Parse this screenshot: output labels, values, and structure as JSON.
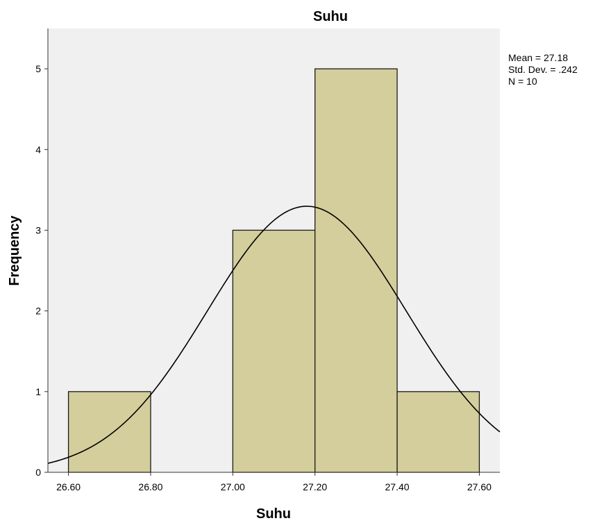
{
  "chart_data": {
    "type": "bar",
    "title": "Suhu",
    "xlabel": "Suhu",
    "ylabel": "Frequency",
    "xlim": [
      26.55,
      27.65
    ],
    "ylim": [
      0,
      5.5
    ],
    "bins": [
      {
        "x0": 26.6,
        "x1": 26.8,
        "value": 1
      },
      {
        "x0": 26.8,
        "x1": 27.0,
        "value": 0
      },
      {
        "x0": 27.0,
        "x1": 27.2,
        "value": 3
      },
      {
        "x0": 27.2,
        "x1": 27.4,
        "value": 5
      },
      {
        "x0": 27.4,
        "x1": 27.6,
        "value": 1
      }
    ],
    "x_ticks": [
      {
        "value": 26.6,
        "label": "26.60"
      },
      {
        "value": 26.8,
        "label": "26.80"
      },
      {
        "value": 27.0,
        "label": "27.00"
      },
      {
        "value": 27.2,
        "label": "27.20"
      },
      {
        "value": 27.4,
        "label": "27.40"
      },
      {
        "value": 27.6,
        "label": "27.60"
      }
    ],
    "y_ticks": [
      0,
      1,
      2,
      3,
      4,
      5
    ],
    "normal_curve": {
      "mean": 27.18,
      "sd": 0.242,
      "n": 10,
      "bin_width": 0.2
    },
    "stats_box": [
      "Mean = 27.18",
      "Std. Dev. = .242",
      "N = 10"
    ],
    "colors": {
      "bar_fill": "#d3ce9b",
      "bar_stroke": "#1a1a1a",
      "plot_bg": "#f0f0f0",
      "curve": "#000000"
    },
    "grid": false
  }
}
